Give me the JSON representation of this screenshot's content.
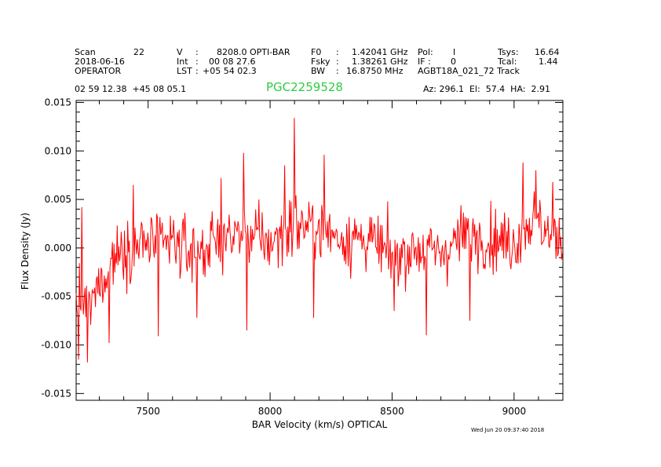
{
  "header": {
    "col1": {
      "r1_label": "Scan",
      "r1_value": "22",
      "r2": "2018-06-16",
      "r3": "OPERATOR"
    },
    "col2": {
      "r1_label": "V",
      "r1_sep": ":",
      "r1_value": "8208.0 OPTI-BAR",
      "r2_label": "Int",
      "r2_sep": ":",
      "r2_value": "00 08 27.6",
      "r3_label": "LST",
      "r3_sep": ":",
      "r3_value": "+05 54 02.3"
    },
    "col3": {
      "r1_label": "F0",
      "r1_sep": ":",
      "r1_value": "1.42041 GHz",
      "r2_label": "Fsky",
      "r2_sep": ":",
      "r2_value": "1.38261 GHz",
      "r3_label": "BW",
      "r3_sep": ":",
      "r3_value": "16.8750 MHz"
    },
    "col4": {
      "r1_label": "Pol:",
      "r1_value": "I",
      "r2_label": "IF :",
      "r2_value": "0",
      "r3": "AGBT18A_021_72 Track"
    },
    "col5": {
      "r1_label": "Tsys:",
      "r1_value": "16.64",
      "r2_label": "Tcal:",
      "r2_value": "1.44"
    },
    "coords": "02 59 12.38  +45 08 05.1",
    "source": "PGC2259528",
    "azelha": "Az: 296.1  El:  57.4  HA:  2.91",
    "timestamp": "Wed Jun 20 09:37:40 2018"
  },
  "colors": {
    "line": "#ff0000",
    "source_text": "#2ecc40",
    "axis": "#000000"
  },
  "chart_data": {
    "type": "line",
    "title": "PGC2259528",
    "xlabel": "BAR Velocity (km/s) OPTICAL",
    "ylabel": "Flux Density (Jy)",
    "xlim": [
      7205,
      9200
    ],
    "ylim": [
      -0.0157,
      0.0152
    ],
    "xticks": [
      7500,
      8000,
      8500,
      9000
    ],
    "xtick_labels": [
      "7500",
      "8000",
      "8500",
      "9000"
    ],
    "yticks": [
      -0.015,
      -0.01,
      -0.005,
      0.0,
      0.005,
      0.01,
      0.015
    ],
    "ytick_labels": [
      "-0.015",
      "-0.010",
      "-0.005",
      "0.000",
      "0.005",
      "0.010",
      "0.015"
    ],
    "series": [
      {
        "name": "spectrum",
        "x_start": 7205,
        "x_step": 3.3,
        "envelope": [
          [
            7205,
            -0.006
          ],
          [
            7260,
            -0.006
          ],
          [
            7300,
            -0.004
          ],
          [
            7350,
            -0.001
          ],
          [
            7400,
            0.0
          ],
          [
            7500,
            0.0005
          ],
          [
            7600,
            0.0005
          ],
          [
            7700,
            -0.0005
          ],
          [
            7800,
            0.001
          ],
          [
            7900,
            0.0015
          ],
          [
            8000,
            0.0005
          ],
          [
            8100,
            0.0025
          ],
          [
            8200,
            0.002
          ],
          [
            8300,
            0.001
          ],
          [
            8400,
            0.001
          ],
          [
            8500,
            -0.001
          ],
          [
            8600,
            0.0
          ],
          [
            8700,
            -0.0005
          ],
          [
            8800,
            0.0015
          ],
          [
            8900,
            0.001
          ],
          [
            9000,
            0.0005
          ],
          [
            9050,
            0.0025
          ],
          [
            9100,
            0.003
          ],
          [
            9150,
            0.001
          ],
          [
            9200,
            0.001
          ]
        ],
        "noise_sigma": 0.0035,
        "spikes": [
          {
            "x": 7215,
            "y": -0.0115
          },
          {
            "x": 7228,
            "y": 0.0042
          },
          {
            "x": 7250,
            "y": -0.0118
          },
          {
            "x": 7340,
            "y": -0.0098
          },
          {
            "x": 7440,
            "y": 0.0065
          },
          {
            "x": 7540,
            "y": -0.0091
          },
          {
            "x": 7700,
            "y": -0.0072
          },
          {
            "x": 7800,
            "y": 0.0072
          },
          {
            "x": 7890,
            "y": 0.0098
          },
          {
            "x": 7905,
            "y": -0.0085
          },
          {
            "x": 8060,
            "y": 0.0085
          },
          {
            "x": 8100,
            "y": 0.0134
          },
          {
            "x": 8180,
            "y": -0.0072
          },
          {
            "x": 8220,
            "y": 0.0096
          },
          {
            "x": 8510,
            "y": -0.0065
          },
          {
            "x": 8640,
            "y": -0.009
          },
          {
            "x": 8820,
            "y": -0.0075
          },
          {
            "x": 9035,
            "y": 0.0088
          },
          {
            "x": 9090,
            "y": 0.008
          },
          {
            "x": 9160,
            "y": 0.0068
          }
        ]
      }
    ]
  }
}
